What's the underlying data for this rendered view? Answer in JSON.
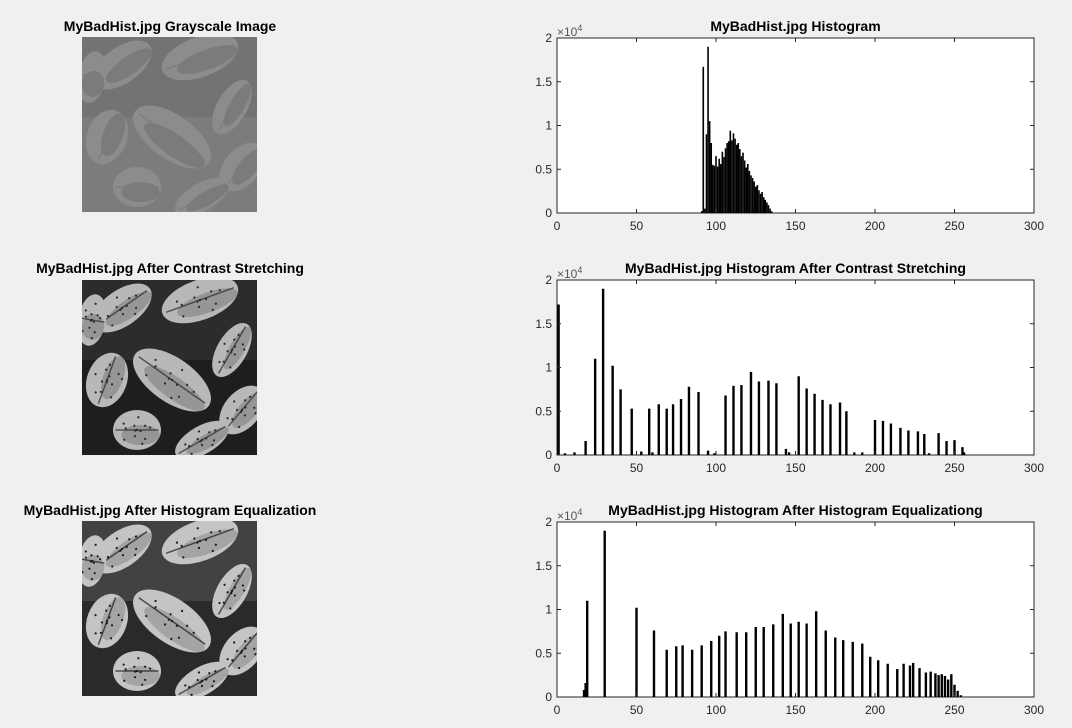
{
  "image_titles": [
    "MyBadHist.jpg Grayscale Image",
    "MyBadHist.jpg After Contrast Stretching",
    "MyBadHist.jpg After Histogram Equalization"
  ],
  "image_tones": [
    {
      "bg": "#7c7c7c",
      "blob": "#8c8c8c",
      "shade": "#6e6e6e",
      "dots": "#7a7a7a",
      "gap": "#6a6a6a"
    },
    {
      "bg": "#1e1e1e",
      "blob": "#b8b8b8",
      "shade": "#7a7a7a",
      "dots": "#2a2a2a",
      "gap": "#3a3a3a"
    },
    {
      "bg": "#2a2a2a",
      "blob": "#c4c4c4",
      "shade": "#8a8a8a",
      "dots": "#1a1a1a",
      "gap": "#5a5a5a"
    }
  ],
  "chart_data": [
    {
      "type": "bar",
      "title": "MyBadHist.jpg Histogram",
      "xlim": [
        0,
        300
      ],
      "ylim": [
        0,
        20000
      ],
      "xticks": [
        "0",
        "50",
        "100",
        "150",
        "200",
        "250",
        "300"
      ],
      "yticks": [
        "0",
        "0.5",
        "1",
        "1.5",
        "2"
      ],
      "y_exponent": "10^4",
      "bar_color": "#000000",
      "x": [
        91,
        92,
        93,
        94,
        95,
        96,
        97,
        98,
        99,
        100,
        101,
        102,
        103,
        104,
        105,
        106,
        107,
        108,
        109,
        110,
        111,
        112,
        113,
        114,
        115,
        116,
        117,
        118,
        119,
        120,
        121,
        122,
        123,
        124,
        125,
        126,
        127,
        128,
        129,
        130,
        131,
        132,
        133,
        134,
        135
      ],
      "values": [
        200,
        16700,
        500,
        9000,
        19000,
        10500,
        8000,
        5500,
        5400,
        6500,
        5300,
        6200,
        5600,
        7000,
        6400,
        7400,
        8000,
        8200,
        9400,
        8300,
        9100,
        8500,
        7800,
        8000,
        7300,
        6500,
        6900,
        6000,
        5200,
        5600,
        4800,
        4300,
        4000,
        3600,
        3000,
        3200,
        2600,
        2200,
        2400,
        1800,
        1500,
        1200,
        900,
        500,
        200
      ]
    },
    {
      "type": "bar",
      "title": "MyBadHist.jpg Histogram After Contrast Stretching",
      "xlim": [
        0,
        300
      ],
      "ylim": [
        0,
        20000
      ],
      "xticks": [
        "0",
        "50",
        "100",
        "150",
        "200",
        "250",
        "300"
      ],
      "yticks": [
        "0",
        "0.5",
        "1",
        "1.5",
        "2"
      ],
      "y_exponent": "10^4",
      "bar_color": "#000000",
      "x": [
        1,
        5,
        11,
        18,
        24,
        29,
        35,
        40,
        47,
        53,
        58,
        60,
        64,
        69,
        73,
        78,
        83,
        89,
        95,
        99,
        106,
        111,
        116,
        122,
        127,
        133,
        138,
        144,
        146,
        152,
        157,
        162,
        167,
        172,
        178,
        182,
        187,
        192,
        200,
        205,
        210,
        216,
        221,
        227,
        231,
        234,
        240,
        245,
        250,
        255,
        256
      ],
      "values": [
        17200,
        200,
        300,
        1600,
        11000,
        19000,
        10200,
        7500,
        5300,
        400,
        5300,
        300,
        5800,
        5300,
        5800,
        6400,
        7800,
        7200,
        500,
        200,
        6800,
        7900,
        8000,
        9500,
        8400,
        8500,
        8200,
        700,
        300,
        9000,
        7600,
        7000,
        6300,
        5800,
        6000,
        5000,
        300,
        300,
        4000,
        3900,
        3600,
        3100,
        2800,
        2700,
        2400,
        200,
        2500,
        1600,
        1700,
        900,
        300
      ]
    },
    {
      "type": "bar",
      "title": "MyBadHist.jpg Histogram After Histogram Equalizationg",
      "xlim": [
        0,
        300
      ],
      "ylim": [
        0,
        20000
      ],
      "xticks": [
        "0",
        "50",
        "100",
        "150",
        "200",
        "250",
        "300"
      ],
      "yticks": [
        "0",
        "0.5",
        "1",
        "1.5",
        "2"
      ],
      "y_exponent": "10^4",
      "bar_color": "#000000",
      "x": [
        17,
        18,
        19,
        30,
        50,
        61,
        69,
        75,
        79,
        85,
        91,
        97,
        102,
        106,
        113,
        119,
        125,
        130,
        136,
        142,
        147,
        152,
        157,
        163,
        169,
        175,
        180,
        186,
        192,
        197,
        202,
        208,
        214,
        218,
        222,
        224,
        228,
        232,
        235,
        238,
        240,
        242,
        244,
        246,
        248,
        250,
        252,
        254
      ],
      "values": [
        800,
        1600,
        11000,
        19000,
        10200,
        7600,
        5400,
        5800,
        5900,
        5400,
        5900,
        6400,
        7000,
        7500,
        7400,
        7400,
        8000,
        8000,
        8300,
        9500,
        8400,
        8600,
        8400,
        9800,
        7600,
        6800,
        6500,
        6300,
        6100,
        4600,
        4200,
        3800,
        3200,
        3800,
        3600,
        3900,
        3300,
        2800,
        2900,
        2700,
        2500,
        2600,
        2400,
        2000,
        2600,
        1400,
        700,
        200
      ]
    }
  ]
}
